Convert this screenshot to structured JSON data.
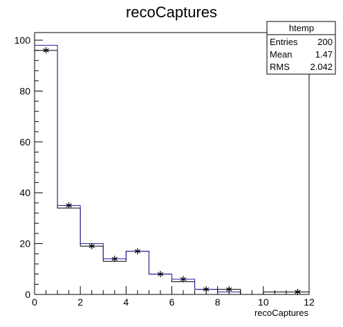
{
  "chart_data": {
    "type": "bar",
    "title": "recoCaptures",
    "xlabel": "recoCaptures",
    "ylabel": "",
    "xlim": [
      0,
      12
    ],
    "ylim": [
      0,
      103
    ],
    "grid": false,
    "x_ticks": [
      0,
      2,
      4,
      6,
      8,
      10,
      12
    ],
    "y_ticks": [
      0,
      20,
      40,
      60,
      80,
      100
    ],
    "bin_edges": [
      0,
      1,
      2,
      3,
      4,
      5,
      6,
      7,
      8,
      9,
      10,
      11,
      12
    ],
    "series": [
      {
        "values": [
          96,
          34,
          19,
          13,
          17,
          8,
          5,
          2,
          2,
          0,
          1,
          1
        ],
        "color": "#000000"
      },
      {
        "values": [
          98,
          35,
          20,
          14,
          17,
          8,
          6,
          2,
          1,
          0,
          0,
          0
        ],
        "color": "#1f1fa0"
      }
    ],
    "markers": {
      "x": [
        0.5,
        1.5,
        2.5,
        3.5,
        4.5,
        5.5,
        6.5,
        7.5,
        8.5,
        11.5
      ],
      "y": [
        96,
        35,
        19,
        14,
        17,
        8,
        6,
        2,
        2,
        1
      ],
      "symbol": "asterisk"
    },
    "stats_box": {
      "title": "htemp",
      "rows": [
        {
          "label": "Entries",
          "value": "200"
        },
        {
          "label": "Mean",
          "value": "1.47"
        },
        {
          "label": "RMS",
          "value": "2.042"
        }
      ]
    }
  }
}
